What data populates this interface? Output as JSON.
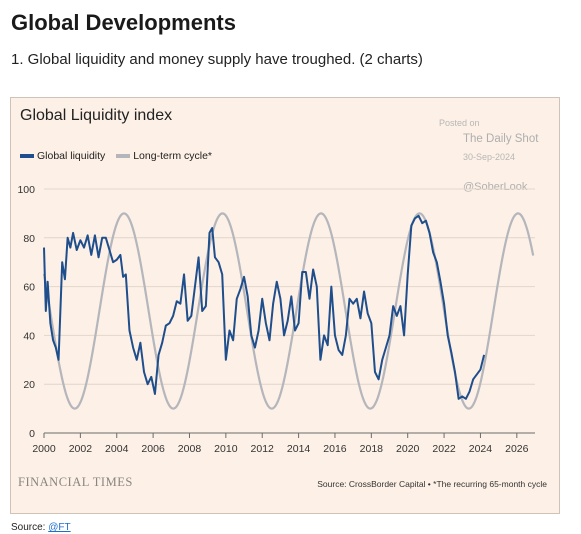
{
  "page": {
    "heading": "Global Developments",
    "subheading": "1. Global liquidity and money supply have troughed. (2 charts)",
    "footer_prefix": "Source: ",
    "footer_link": "@FT"
  },
  "chart_data": {
    "type": "line",
    "title": "Global Liquidity index",
    "xlabel": "",
    "ylabel": "",
    "xlim": [
      2000,
      2027
    ],
    "ylim": [
      0,
      100
    ],
    "x_ticks": [
      "2000",
      "2002",
      "2004",
      "2006",
      "2008",
      "2010",
      "2012",
      "2014",
      "2016",
      "2018",
      "2020",
      "2022",
      "2024",
      "2026"
    ],
    "y_ticks": [
      "0",
      "20",
      "40",
      "60",
      "80",
      "100"
    ],
    "grid": "horizontal",
    "legend_position": "top-left",
    "series": [
      {
        "name": "Global liquidity",
        "color": "#1f4e8c",
        "x": [
          2000.0,
          2000.1,
          2000.2,
          2000.35,
          2000.5,
          2000.65,
          2000.8,
          2001.0,
          2001.15,
          2001.3,
          2001.45,
          2001.6,
          2001.8,
          2002.0,
          2002.2,
          2002.4,
          2002.6,
          2002.8,
          2003.0,
          2003.2,
          2003.4,
          2003.6,
          2003.8,
          2004.0,
          2004.2,
          2004.35,
          2004.5,
          2004.7,
          2004.9,
          2005.1,
          2005.3,
          2005.5,
          2005.7,
          2005.9,
          2006.1,
          2006.3,
          2006.5,
          2006.7,
          2006.9,
          2007.1,
          2007.3,
          2007.5,
          2007.7,
          2007.9,
          2008.1,
          2008.3,
          2008.5,
          2008.7,
          2008.9,
          2009.1,
          2009.25,
          2009.4,
          2009.6,
          2009.8,
          2010.0,
          2010.2,
          2010.4,
          2010.6,
          2010.8,
          2011.0,
          2011.2,
          2011.4,
          2011.6,
          2011.8,
          2012.0,
          2012.2,
          2012.4,
          2012.6,
          2012.8,
          2013.0,
          2013.2,
          2013.4,
          2013.6,
          2013.8,
          2014.0,
          2014.2,
          2014.4,
          2014.6,
          2014.8,
          2015.0,
          2015.2,
          2015.4,
          2015.6,
          2015.8,
          2016.0,
          2016.2,
          2016.4,
          2016.6,
          2016.8,
          2017.0,
          2017.2,
          2017.4,
          2017.6,
          2017.8,
          2018.0,
          2018.2,
          2018.4,
          2018.6,
          2018.8,
          2019.0,
          2019.2,
          2019.4,
          2019.6,
          2019.8,
          2020.0,
          2020.2,
          2020.4,
          2020.6,
          2020.8,
          2021.0,
          2021.2,
          2021.4,
          2021.6,
          2021.8,
          2022.0,
          2022.2,
          2022.4,
          2022.6,
          2022.8,
          2023.0,
          2023.2,
          2023.4,
          2023.6,
          2023.8,
          2024.0,
          2024.2
        ],
        "y": [
          76,
          50,
          62,
          45,
          38,
          35,
          30,
          70,
          63,
          80,
          76,
          82,
          75,
          79,
          76,
          81,
          73,
          81,
          72,
          80,
          80,
          75,
          70,
          71,
          73,
          64,
          65,
          42,
          35,
          30,
          37,
          25,
          20,
          23,
          16,
          32,
          37,
          44,
          45,
          48,
          54,
          53,
          65,
          46,
          48,
          60,
          72,
          50,
          52,
          82,
          84,
          72,
          70,
          65,
          30,
          42,
          38,
          55,
          59,
          64,
          56,
          40,
          35,
          42,
          55,
          45,
          38,
          53,
          62,
          55,
          40,
          46,
          56,
          42,
          45,
          66,
          66,
          55,
          67,
          60,
          30,
          40,
          36,
          60,
          40,
          34,
          32,
          40,
          55,
          53,
          55,
          47,
          58,
          49,
          45,
          25,
          22,
          30,
          35,
          40,
          52,
          48,
          52,
          40,
          65,
          85,
          88,
          89,
          86,
          87,
          82,
          74,
          70,
          62,
          53,
          40,
          33,
          25,
          14,
          15,
          14,
          17,
          22,
          24,
          26,
          32
        ]
      },
      {
        "name": "Long-term cycle*",
        "color": "#b4b6bc",
        "period_months": 65,
        "mid": 50,
        "amplitude": 40,
        "peak_year": 2004.4,
        "x_start": 2000.0,
        "x_end": 2026.9
      }
    ]
  },
  "legend": {
    "items": [
      "Global liquidity",
      "Long-term cycle*"
    ]
  },
  "watermark": {
    "posted_on": "Posted on",
    "publication": "The Daily Shot",
    "date": "30-Sep-2024",
    "handle": "@SoberLook"
  },
  "brand": "FINANCIAL TIMES",
  "source_note": "Source: CrossBorder Capital • *The recurring 65-month cycle"
}
